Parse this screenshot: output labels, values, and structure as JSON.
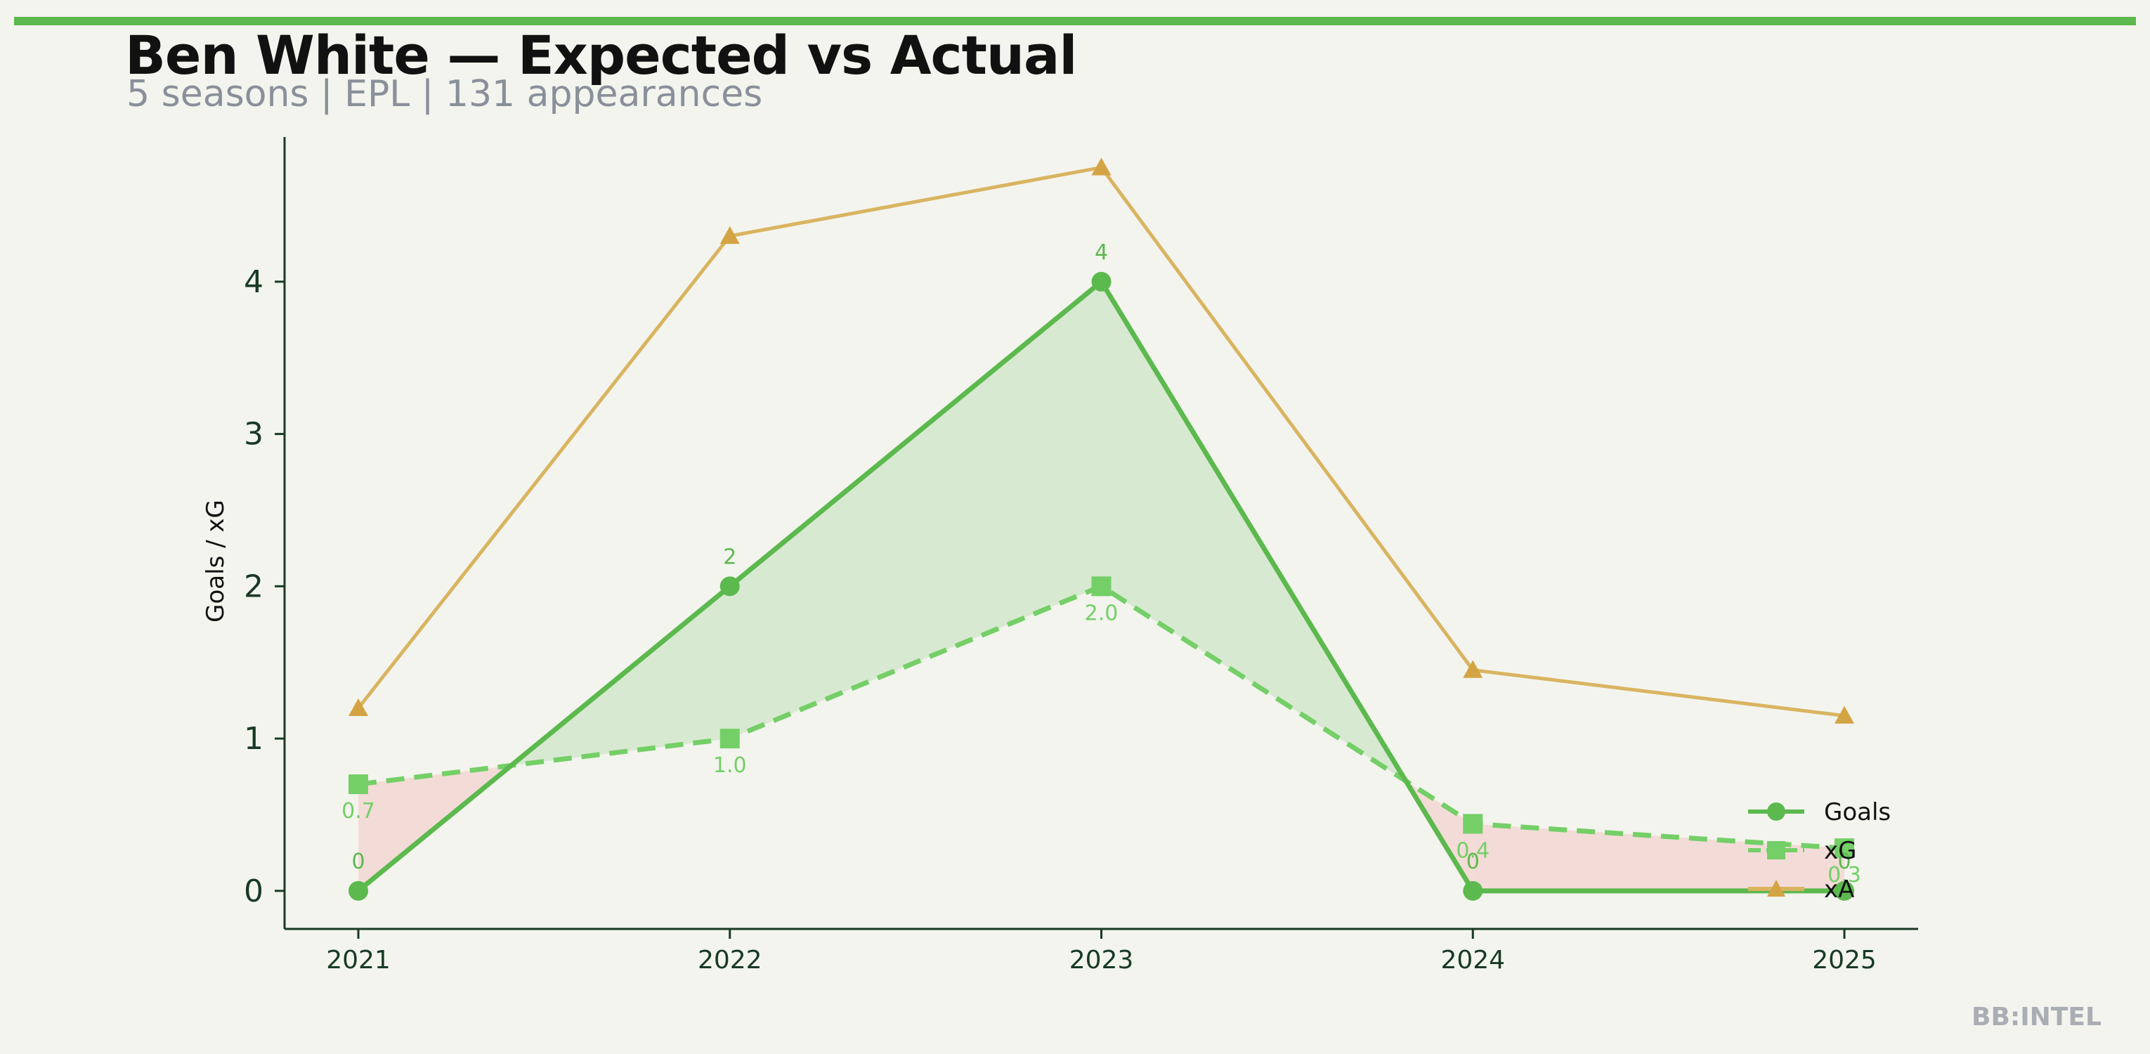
{
  "title": "Ben White — Expected vs Actual",
  "subtitle": "5 seasons | EPL | 131 appearances",
  "watermark": "BB:INTEL",
  "colors": {
    "accent": "#5cb94e",
    "goals": "#5cb94e",
    "xg": "#74cf67",
    "xa": "#d9b460",
    "xa_marker": "#d4a444",
    "overperform_fill": "#5cb94e",
    "underperform_fill": "#f2c8c4",
    "axis": "#183a24",
    "background": "#f3f4ee"
  },
  "chart_data": {
    "type": "line",
    "categories": [
      "2021",
      "2022",
      "2023",
      "2024",
      "2025"
    ],
    "ylabel": "Goals / xG",
    "ylim": [
      -0.25,
      4.95
    ],
    "yticks": [
      0,
      1,
      2,
      3,
      4
    ],
    "grid": false,
    "legend_position": "lower-right",
    "series": [
      {
        "name": "Goals",
        "values": [
          0,
          2,
          4,
          0,
          0
        ],
        "labels": [
          "0",
          "2",
          "4",
          "0",
          "0"
        ],
        "marker": "circle",
        "style": "solid"
      },
      {
        "name": "xG",
        "values": [
          0.7,
          1.0,
          2.0,
          0.44,
          0.28
        ],
        "labels": [
          "0.7",
          "1.0",
          "2.0",
          "0.4",
          "0.3"
        ],
        "marker": "square",
        "style": "dashed"
      },
      {
        "name": "xA",
        "values": [
          1.2,
          4.3,
          4.75,
          1.45,
          1.15
        ],
        "marker": "triangle",
        "style": "solid"
      }
    ]
  }
}
